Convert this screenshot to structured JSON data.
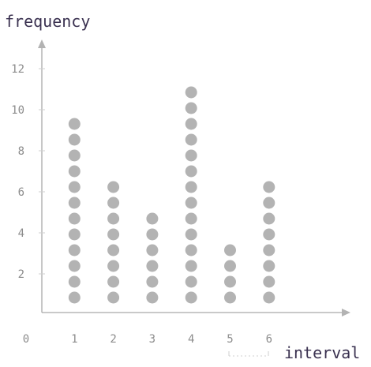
{
  "chart_data": {
    "type": "scatter",
    "subtype": "dot-plot",
    "title": "",
    "ylabel": "frequency",
    "xlabel": "interval",
    "categories": [
      1,
      2,
      3,
      4,
      5,
      6
    ],
    "values": [
      12,
      8,
      6,
      14,
      4,
      8
    ],
    "x_tick_labels": [
      "0",
      "1",
      "2",
      "3",
      "4",
      "5",
      "6"
    ],
    "y_tick_labels": [
      "2",
      "4",
      "6",
      "8",
      "10",
      "12"
    ],
    "y_ticks": [
      2,
      4,
      6,
      8,
      10,
      12
    ],
    "ylim": [
      0,
      13.3
    ],
    "xlim": [
      0,
      7.2
    ],
    "grid": false,
    "legend": "none",
    "colors": {
      "dot": "#b3b3b3",
      "axis": "#a9a9a9",
      "label": "#3a3150",
      "tick": "#8c8c8c"
    }
  }
}
